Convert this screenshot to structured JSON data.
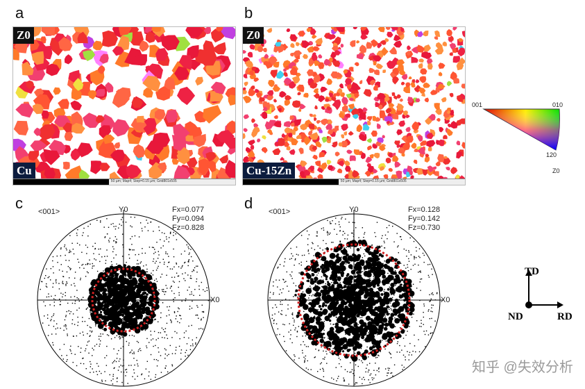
{
  "panels": {
    "a": {
      "label": "a",
      "corner": "Z0",
      "material": "Cu",
      "scale_text": "50 µm; Map4; Step=0.15 µm; Grid801x505"
    },
    "b": {
      "label": "b",
      "corner": "Z0",
      "material": "Cu-15Zn",
      "scale_text": "50 µm; Map4; Step=0.15 µm; Grid801x505"
    },
    "c": {
      "label": "c",
      "direction": "<001>",
      "y_axis": "Y0",
      "x_axis": "X0",
      "fx": "Fx=0.077",
      "fy": "Fy=0.094",
      "fz": "Fz=0.828"
    },
    "d": {
      "label": "d",
      "direction": "<001>",
      "y_axis": "Y0",
      "x_axis": "X0",
      "fx": "Fx=0.128",
      "fy": "Fy=0.142",
      "fz": "Fz=0.730"
    }
  },
  "ipf_legend": {
    "v001": "001",
    "v010": "010",
    "v120": "120",
    "axis": "Z0"
  },
  "frame": {
    "td": "TD",
    "nd": "ND",
    "rd": "RD"
  },
  "watermark": "知乎 @失效分析",
  "colors": {
    "red_circle": "#d02020",
    "label_dark": "#0c1c3e"
  }
}
